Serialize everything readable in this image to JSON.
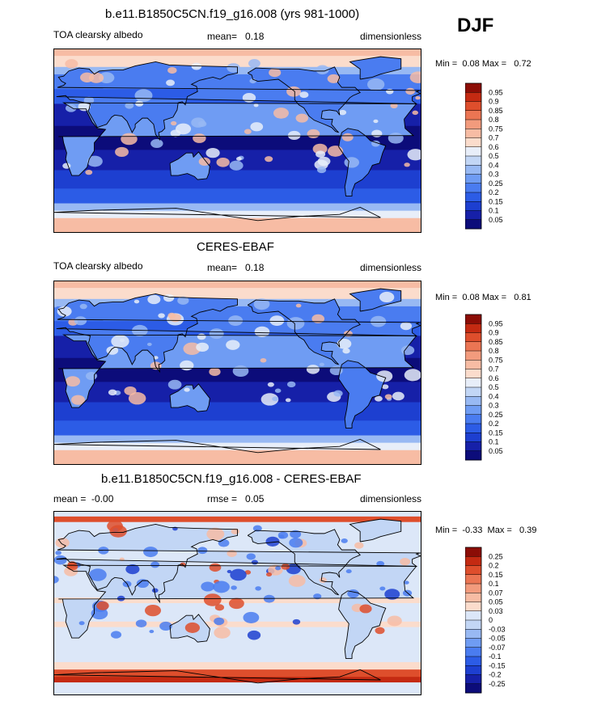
{
  "season": "DJF",
  "panels": [
    {
      "title": "b.e11.B1850C5CN.f19_g16.008 (yrs 981-1000)",
      "variable": "TOA clearsky albedo",
      "stat_label": "mean=",
      "stat_value": "0.18",
      "units": "dimensionless",
      "min_label": "Min =",
      "min_value": "0.08",
      "max_label": "Max =",
      "max_value": "0.72",
      "colorbar_labels": [
        "0.95",
        "0.9",
        "0.85",
        "0.8",
        "0.75",
        "0.7",
        "0.6",
        "0.5",
        "0.4",
        "0.3",
        "0.25",
        "0.2",
        "0.15",
        "0.1",
        "0.05"
      ]
    },
    {
      "title": "CERES-EBAF",
      "variable": "TOA clearsky albedo",
      "stat_label": "mean=",
      "stat_value": "0.18",
      "units": "dimensionless",
      "min_label": "Min =",
      "min_value": "0.08",
      "max_label": "Max =",
      "max_value": "0.81",
      "colorbar_labels": [
        "0.95",
        "0.9",
        "0.85",
        "0.8",
        "0.75",
        "0.7",
        "0.6",
        "0.5",
        "0.4",
        "0.3",
        "0.25",
        "0.2",
        "0.15",
        "0.1",
        "0.05"
      ]
    },
    {
      "title": "b.e11.B1850C5CN.f19_g16.008 - CERES-EBAF",
      "mean_label": "mean =",
      "mean_value": "-0.00",
      "rmse_label": "rmse =",
      "rmse_value": "0.05",
      "units": "dimensionless",
      "min_label": "Min =",
      "min_value": "-0.33",
      "max_label": "Max =",
      "max_value": "0.39",
      "colorbar_labels": [
        "0.25",
        "0.2",
        "0.15",
        "0.1",
        "0.07",
        "0.05",
        "0.03",
        "0",
        "-0.03",
        "-0.05",
        "-0.07",
        "-0.1",
        "-0.15",
        "-0.2",
        "-0.25"
      ]
    }
  ],
  "colors": {
    "albedo_scale": [
      "#0c0c7a",
      "#1620a8",
      "#1d3fd0",
      "#2c5ce6",
      "#4a7cf0",
      "#6f9cf3",
      "#98b9f3",
      "#c2d6f5",
      "#e8eef9",
      "#fbdccc",
      "#f7bca4",
      "#f29b7d",
      "#eb7553",
      "#de4e2c",
      "#c42a12",
      "#8c0d06"
    ],
    "diff_scale": [
      "#0c0c7a",
      "#1620a8",
      "#1d3fd0",
      "#2c5ce6",
      "#4a7cf0",
      "#6f9cf3",
      "#98b9f3",
      "#c2d6f5",
      "#dce7f8",
      "#fbdccc",
      "#f7bca4",
      "#f29b7d",
      "#eb7553",
      "#de4e2c",
      "#c42a12",
      "#8c0d06"
    ]
  }
}
